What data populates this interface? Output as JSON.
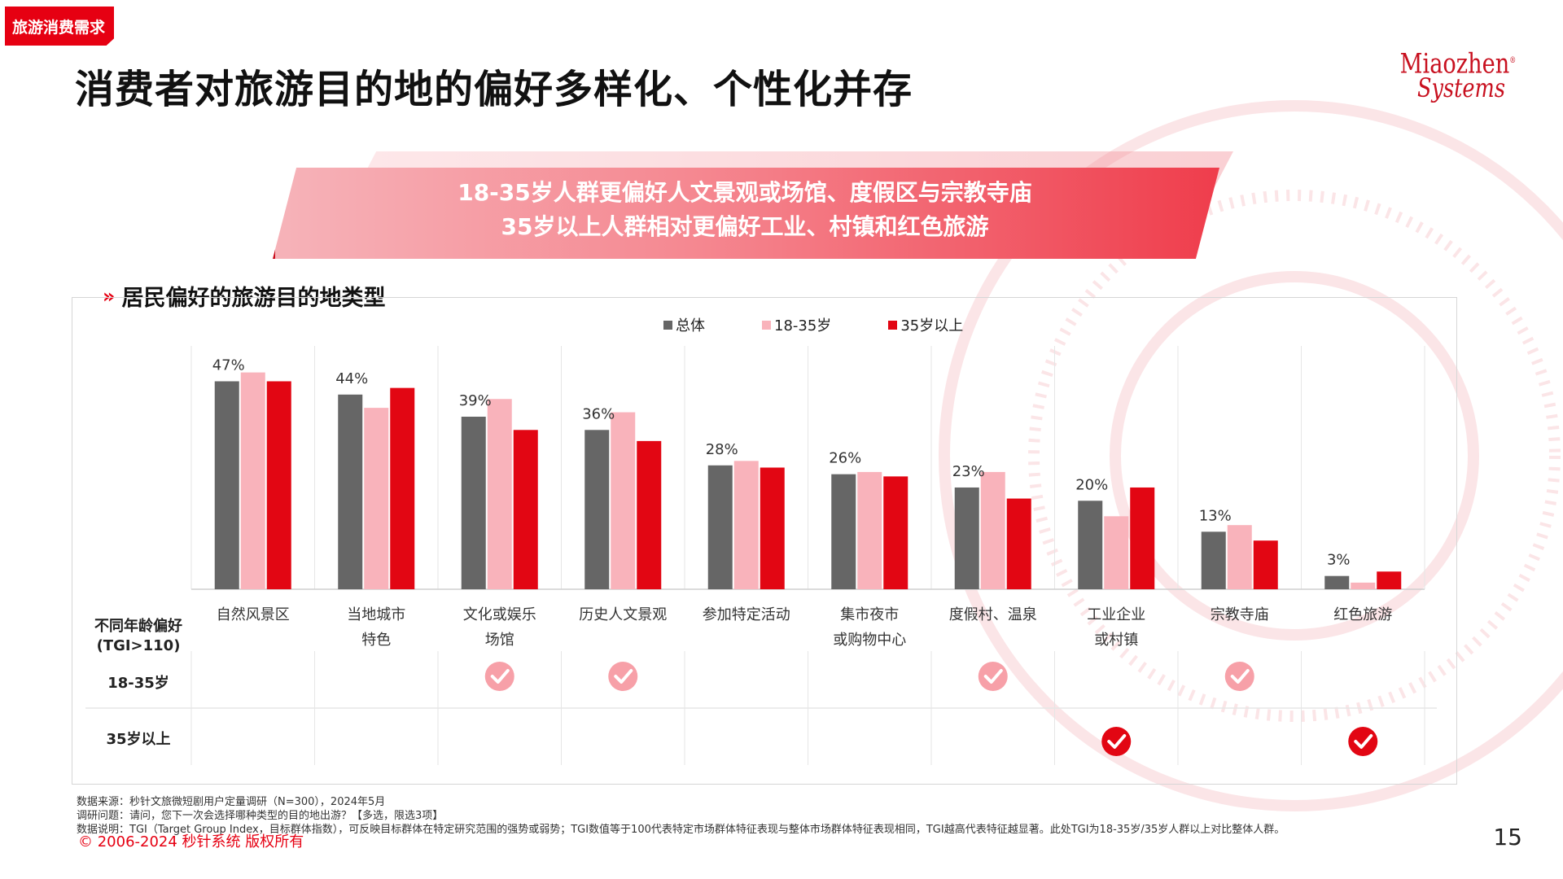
{
  "section_tag": "旅游消费需求",
  "title": "消费者对旅游目的地的偏好多样化、个性化并存",
  "brand": {
    "line1": "Miaozhen",
    "line2": "Systems",
    "reg": "®"
  },
  "banner": {
    "line1": "18-35岁人群更偏好人文景观或场馆、度假区与宗教寺庙",
    "line2": "35岁以上人群相对更偏好工业、村镇和红色旅游"
  },
  "chart_heading": "居民偏好的旅游目的地类型",
  "colors": {
    "overall": "#666666",
    "young": "#f9b3bb",
    "older": "#e20613",
    "accent": "#e60012"
  },
  "chart_data": {
    "type": "bar",
    "categories": [
      "自然风景区",
      "当地城市\n特色",
      "文化或娱乐\n场馆",
      "历史人文景观",
      "参加特定活动",
      "集市夜市\n或购物中心",
      "度假村、温泉",
      "工业企业\n或村镇",
      "宗教寺庙",
      "红色旅游"
    ],
    "series": [
      {
        "name": "总体",
        "values": [
          47,
          44,
          39,
          36,
          28,
          26,
          23,
          20,
          13,
          3
        ]
      },
      {
        "name": "18-35岁",
        "values": [
          49,
          41,
          43,
          40,
          29,
          26.5,
          26.5,
          16.5,
          14.5,
          1.5
        ]
      },
      {
        "name": "35岁以上",
        "values": [
          47,
          45.5,
          36,
          33.5,
          27.5,
          25.5,
          20.5,
          23,
          11,
          4
        ]
      }
    ],
    "data_labels": [
      "47%",
      "44%",
      "39%",
      "36%",
      "28%",
      "26%",
      "23%",
      "20%",
      "13%",
      "3%"
    ],
    "ylim": [
      0,
      55
    ],
    "legend_position": "top-center",
    "grid": "vertical separators"
  },
  "tgi_table": {
    "header": "不同年龄偏好\n(TGI>110)",
    "rows": [
      {
        "label": "18-35岁",
        "checks": [
          2,
          3,
          6,
          8
        ],
        "style": "light"
      },
      {
        "label": "35岁以上",
        "checks": [
          7,
          9
        ],
        "style": "solid"
      }
    ]
  },
  "footnotes": [
    "数据来源：秒针文旅微短剧用户定量调研（N=300），2024年5月",
    "调研问题：请问，您下一次会选择哪种类型的目的地出游？【多选，限选3项】",
    "数据说明：TGI（Target Group Index，目标群体指数），可反映目标群体在特定研究范围的强势或弱势；TGI数值等于100代表特定市场群体特征表现与整体市场群体特征表现相同，TGI越高代表特征越显著。此处TGI为18-35岁/35岁人群以上对比整体人群。"
  ],
  "copyright": "© 2006-2024 秒针系统 版权所有",
  "page_number": "15"
}
